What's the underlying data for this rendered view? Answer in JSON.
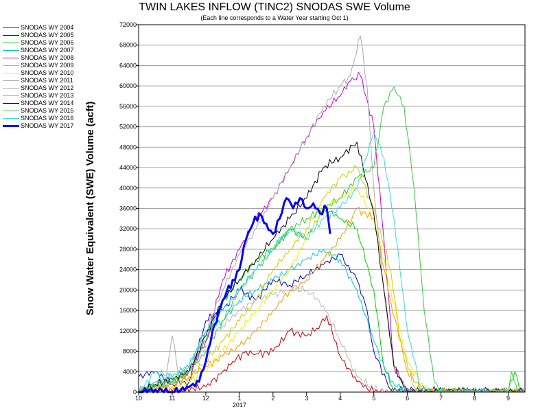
{
  "chart_data": {
    "type": "line",
    "title": "TWIN LAKES INFLOW (TINC2) SNODAS SWE Volume",
    "subtitle": "(Each line corresponds to a Water Year starting Oct 1)",
    "ylabel": "Snow Water Equivalent (SWE) Volume (acft)",
    "xlabel": "",
    "ylim": [
      0,
      72000
    ],
    "yticks": [
      0,
      4000,
      8000,
      12000,
      16000,
      20000,
      24000,
      28000,
      32000,
      36000,
      40000,
      44000,
      48000,
      52000,
      56000,
      60000,
      64000,
      68000,
      72000
    ],
    "xlim": [
      0,
      11.5
    ],
    "xticks": [
      {
        "x": 0,
        "label": "10"
      },
      {
        "x": 1,
        "label": "11"
      },
      {
        "x": 2,
        "label": "12"
      },
      {
        "x": 3,
        "label": "1"
      },
      {
        "x": 4,
        "label": "2"
      },
      {
        "x": 5,
        "label": "3"
      },
      {
        "x": 6,
        "label": "4"
      },
      {
        "x": 7,
        "label": "5"
      },
      {
        "x": 8,
        "label": "6"
      },
      {
        "x": 9,
        "label": "7"
      },
      {
        "x": 10,
        "label": "8"
      },
      {
        "x": 11,
        "label": "9"
      }
    ],
    "year_label": {
      "x": 3,
      "label": "2017"
    },
    "grid": true,
    "legend_position": "left",
    "x_units": "months since Oct 1 (approx.)",
    "series": [
      {
        "name": "SNODAS WY 2004",
        "color": "#cc0000",
        "width": 1,
        "points": [
          [
            0,
            0
          ],
          [
            1,
            200
          ],
          [
            2,
            1000
          ],
          [
            2.5,
            4000
          ],
          [
            2.8,
            6000
          ],
          [
            3.2,
            8000
          ],
          [
            3.5,
            7500
          ],
          [
            4,
            8000
          ],
          [
            4.5,
            12000
          ],
          [
            5,
            11000
          ],
          [
            5.3,
            12500
          ],
          [
            5.6,
            15000
          ],
          [
            6,
            7000
          ],
          [
            6.5,
            2000
          ],
          [
            7,
            0
          ],
          [
            11.5,
            0
          ]
        ]
      },
      {
        "name": "SNODAS WY 2005",
        "color": "#0000cc",
        "width": 1,
        "points": [
          [
            0,
            3000
          ],
          [
            0.5,
            4000
          ],
          [
            1,
            1500
          ],
          [
            1.5,
            2000
          ],
          [
            2,
            14000
          ],
          [
            2.5,
            16000
          ],
          [
            3,
            20000
          ],
          [
            3.5,
            18000
          ],
          [
            4,
            22000
          ],
          [
            4.5,
            21000
          ],
          [
            5,
            23000
          ],
          [
            5.5,
            25000
          ],
          [
            6,
            27000
          ],
          [
            6.5,
            22000
          ],
          [
            6.8,
            16000
          ],
          [
            7,
            8000
          ],
          [
            7.5,
            500
          ],
          [
            11.5,
            0
          ]
        ]
      },
      {
        "name": "SNODAS WY 2006",
        "color": "#00cc00",
        "width": 1,
        "points": [
          [
            0,
            0
          ],
          [
            0.5,
            1500
          ],
          [
            1,
            2000
          ],
          [
            1.5,
            4000
          ],
          [
            2,
            10000
          ],
          [
            2.5,
            18000
          ],
          [
            3,
            22000
          ],
          [
            3.5,
            26000
          ],
          [
            4,
            28000
          ],
          [
            4.5,
            32000
          ],
          [
            5,
            30000
          ],
          [
            5.5,
            36000
          ],
          [
            6,
            34000
          ],
          [
            6.5,
            32000
          ],
          [
            7,
            20000
          ],
          [
            7.3,
            5000
          ],
          [
            7.6,
            0
          ],
          [
            11,
            0
          ],
          [
            11.2,
            4000
          ],
          [
            11.4,
            0
          ]
        ]
      },
      {
        "name": "SNODAS WY 2007",
        "color": "#00cccc",
        "width": 1,
        "points": [
          [
            0,
            0
          ],
          [
            0.5,
            2000
          ],
          [
            1,
            3000
          ],
          [
            1.5,
            5000
          ],
          [
            2,
            12000
          ],
          [
            2.5,
            14000
          ],
          [
            3,
            18000
          ],
          [
            3.5,
            20000
          ],
          [
            4,
            22000
          ],
          [
            4.5,
            24000
          ],
          [
            5,
            26000
          ],
          [
            5.5,
            28000
          ],
          [
            6,
            26000
          ],
          [
            6.5,
            20000
          ],
          [
            7,
            10000
          ],
          [
            7.5,
            2000
          ],
          [
            8,
            0
          ],
          [
            11.5,
            0
          ]
        ]
      },
      {
        "name": "SNODAS WY 2008",
        "color": "#cc00cc",
        "width": 1,
        "points": [
          [
            0,
            0
          ],
          [
            0.5,
            1000
          ],
          [
            1,
            2000
          ],
          [
            1.5,
            4000
          ],
          [
            2,
            10000
          ],
          [
            2.5,
            22000
          ],
          [
            3,
            28000
          ],
          [
            3.5,
            34000
          ],
          [
            4,
            38000
          ],
          [
            4.5,
            44000
          ],
          [
            5,
            50000
          ],
          [
            5.5,
            55000
          ],
          [
            6,
            58000
          ],
          [
            6.3,
            61000
          ],
          [
            6.6,
            62000
          ],
          [
            7,
            52000
          ],
          [
            7.3,
            30000
          ],
          [
            7.6,
            5000
          ],
          [
            8,
            0
          ],
          [
            11.5,
            0
          ]
        ]
      },
      {
        "name": "SNODAS WY 2009",
        "color": "#cccc00",
        "width": 1,
        "points": [
          [
            0,
            0
          ],
          [
            1,
            1500
          ],
          [
            1.5,
            3000
          ],
          [
            2,
            6000
          ],
          [
            2.5,
            10000
          ],
          [
            3,
            14000
          ],
          [
            3.5,
            18000
          ],
          [
            4,
            24000
          ],
          [
            4.5,
            28000
          ],
          [
            5,
            32000
          ],
          [
            5.5,
            38000
          ],
          [
            6,
            42000
          ],
          [
            6.5,
            44000
          ],
          [
            7,
            36000
          ],
          [
            7.5,
            24000
          ],
          [
            7.8,
            10000
          ],
          [
            8.2,
            1000
          ],
          [
            8.5,
            0
          ],
          [
            11.5,
            0
          ]
        ]
      },
      {
        "name": "SNODAS WY 2010",
        "color": "#eeee00",
        "width": 1,
        "points": [
          [
            0,
            0
          ],
          [
            1,
            1000
          ],
          [
            1.5,
            2000
          ],
          [
            2,
            4000
          ],
          [
            2.5,
            8000
          ],
          [
            3,
            12000
          ],
          [
            3.5,
            16000
          ],
          [
            4,
            20000
          ],
          [
            4.5,
            24000
          ],
          [
            5,
            30000
          ],
          [
            5.5,
            36000
          ],
          [
            6,
            38000
          ],
          [
            6.5,
            40000
          ],
          [
            7,
            34000
          ],
          [
            7.5,
            20000
          ],
          [
            8,
            6000
          ],
          [
            8.5,
            500
          ],
          [
            9,
            0
          ],
          [
            11.5,
            0
          ]
        ]
      },
      {
        "name": "SNODAS WY 2011",
        "color": "#aaaaaa",
        "width": 1,
        "points": [
          [
            0,
            0
          ],
          [
            0.8,
            2000
          ],
          [
            1,
            11000
          ],
          [
            1.2,
            3000
          ],
          [
            1.5,
            4000
          ],
          [
            2,
            12000
          ],
          [
            2.5,
            20000
          ],
          [
            3,
            27000
          ],
          [
            3.5,
            32000
          ],
          [
            4,
            38000
          ],
          [
            4.5,
            44000
          ],
          [
            5,
            50000
          ],
          [
            5.5,
            56000
          ],
          [
            6,
            60000
          ],
          [
            6.3,
            62000
          ],
          [
            6.6,
            69800
          ],
          [
            6.8,
            60000
          ],
          [
            7,
            40000
          ],
          [
            7.3,
            20000
          ],
          [
            7.6,
            5000
          ],
          [
            8,
            0
          ],
          [
            11.5,
            0
          ]
        ]
      },
      {
        "name": "SNODAS WY 2012",
        "color": "#bbbbbb",
        "width": 1,
        "points": [
          [
            0,
            0
          ],
          [
            1,
            1500
          ],
          [
            1.5,
            4000
          ],
          [
            2,
            9000
          ],
          [
            2.5,
            13000
          ],
          [
            3,
            16000
          ],
          [
            3.5,
            18000
          ],
          [
            4,
            19000
          ],
          [
            4.5,
            20000
          ],
          [
            5,
            20000
          ],
          [
            5.5,
            17000
          ],
          [
            6,
            10000
          ],
          [
            6.5,
            3000
          ],
          [
            7,
            500
          ],
          [
            7.5,
            0
          ],
          [
            11.5,
            0
          ]
        ]
      },
      {
        "name": "SNODAS WY 2013",
        "color": "#ff9900",
        "width": 1,
        "points": [
          [
            0,
            0
          ],
          [
            1,
            1000
          ],
          [
            1.5,
            3000
          ],
          [
            2,
            5000
          ],
          [
            2.5,
            7000
          ],
          [
            3,
            9000
          ],
          [
            3.5,
            12000
          ],
          [
            4,
            16000
          ],
          [
            4.5,
            20000
          ],
          [
            5,
            22000
          ],
          [
            5.5,
            26000
          ],
          [
            6,
            30000
          ],
          [
            6.5,
            36000
          ],
          [
            7,
            34000
          ],
          [
            7.5,
            18000
          ],
          [
            8,
            4000
          ],
          [
            8.5,
            0
          ],
          [
            11.5,
            0
          ]
        ]
      },
      {
        "name": "SNODAS WY 2014",
        "color": "#000000",
        "width": 1,
        "points": [
          [
            0,
            0
          ],
          [
            0.5,
            1500
          ],
          [
            1,
            2500
          ],
          [
            1.5,
            4000
          ],
          [
            2,
            11000
          ],
          [
            2.5,
            18000
          ],
          [
            3,
            22000
          ],
          [
            3.5,
            26000
          ],
          [
            4,
            30000
          ],
          [
            4.5,
            34000
          ],
          [
            5,
            38000
          ],
          [
            5.5,
            44000
          ],
          [
            6,
            46000
          ],
          [
            6.5,
            49000
          ],
          [
            7,
            35000
          ],
          [
            7.3,
            20000
          ],
          [
            7.6,
            5000
          ],
          [
            8,
            0
          ],
          [
            11.5,
            0
          ]
        ]
      },
      {
        "name": "SNODAS WY 2015",
        "color": "#33cc33",
        "width": 1,
        "points": [
          [
            0,
            0
          ],
          [
            0.5,
            1000
          ],
          [
            1,
            2000
          ],
          [
            1.5,
            4000
          ],
          [
            2,
            8000
          ],
          [
            2.5,
            14000
          ],
          [
            3,
            20000
          ],
          [
            3.5,
            24000
          ],
          [
            4,
            28000
          ],
          [
            4.5,
            32000
          ],
          [
            5,
            34000
          ],
          [
            5.5,
            36000
          ],
          [
            6,
            38000
          ],
          [
            6.5,
            42000
          ],
          [
            7,
            44000
          ],
          [
            7.3,
            56000
          ],
          [
            7.6,
            59800
          ],
          [
            7.9,
            56000
          ],
          [
            8.2,
            40000
          ],
          [
            8.5,
            16000
          ],
          [
            8.8,
            2000
          ],
          [
            9,
            0
          ],
          [
            11,
            0
          ],
          [
            11.1,
            4000
          ],
          [
            11.3,
            0
          ]
        ]
      },
      {
        "name": "SNODAS WY 2016",
        "color": "#33dddd",
        "width": 1,
        "points": [
          [
            0,
            0
          ],
          [
            0.5,
            4000
          ],
          [
            1,
            3000
          ],
          [
            1.5,
            5000
          ],
          [
            2,
            12000
          ],
          [
            2.5,
            16000
          ],
          [
            3,
            20000
          ],
          [
            3.5,
            24000
          ],
          [
            4,
            28000
          ],
          [
            4.5,
            32000
          ],
          [
            5,
            30000
          ],
          [
            5.5,
            34000
          ],
          [
            6,
            36000
          ],
          [
            6.5,
            40000
          ],
          [
            7,
            51000
          ],
          [
            7.3,
            46000
          ],
          [
            7.6,
            34000
          ],
          [
            8,
            12000
          ],
          [
            8.4,
            1000
          ],
          [
            8.8,
            0
          ],
          [
            11.5,
            0
          ]
        ]
      },
      {
        "name": "SNODAS WY 2017",
        "color": "#0000ff",
        "width": 3,
        "points": [
          [
            0,
            0
          ],
          [
            0.5,
            500
          ],
          [
            1,
            0
          ],
          [
            1.5,
            1000
          ],
          [
            1.8,
            2000
          ],
          [
            2,
            6000
          ],
          [
            2.2,
            12000
          ],
          [
            2.5,
            18000
          ],
          [
            2.8,
            22000
          ],
          [
            3,
            24000
          ],
          [
            3.2,
            30000
          ],
          [
            3.4,
            33000
          ],
          [
            3.6,
            35000
          ],
          [
            3.8,
            33000
          ],
          [
            4,
            31000
          ],
          [
            4.2,
            34000
          ],
          [
            4.4,
            38000
          ],
          [
            4.6,
            36000
          ],
          [
            4.8,
            38000
          ],
          [
            5,
            36000
          ],
          [
            5.2,
            37000
          ],
          [
            5.4,
            35000
          ],
          [
            5.6,
            36000
          ],
          [
            5.7,
            31000
          ]
        ]
      }
    ]
  }
}
